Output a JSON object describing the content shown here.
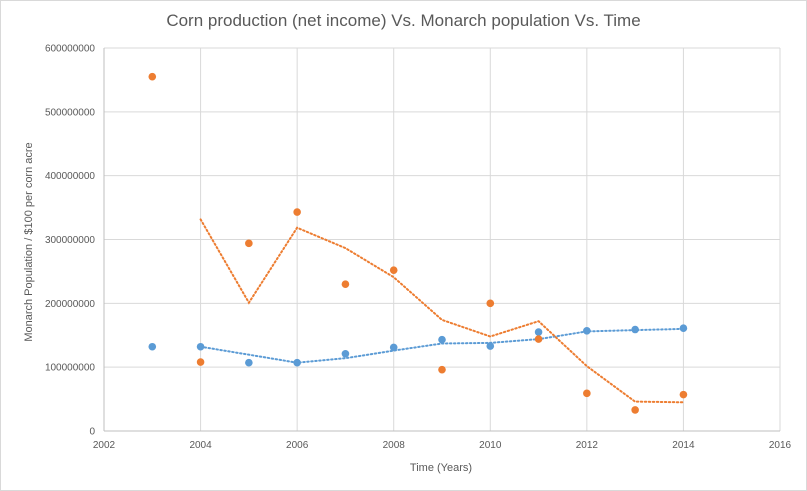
{
  "chart_data": {
    "type": "scatter",
    "title": "Corn production (net income) Vs. Monarch population Vs. Time",
    "xlabel": "Time (Years)",
    "ylabel": "Monarch Population / $100 per corn acre",
    "xlim": [
      2002,
      2016
    ],
    "ylim": [
      0,
      600000000
    ],
    "xticks": [
      "2002",
      "2004",
      "2006",
      "2008",
      "2010",
      "2012",
      "2014",
      "2016"
    ],
    "yticks": [
      "0",
      "100000000",
      "200000000",
      "300000000",
      "400000000",
      "500000000",
      "600000000"
    ],
    "grid": true,
    "legend": "none",
    "trendline": "2-period moving average (dotted)",
    "colors": {
      "blue": "#5b9bd5",
      "orange": "#ed7d31",
      "grid": "#d9d9d9",
      "axis": "#bfbfbf"
    },
    "series": [
      {
        "color": "#5b9bd5",
        "x": [
          2003,
          2004,
          2005,
          2006,
          2007,
          2008,
          2009,
          2010,
          2011,
          2012,
          2013,
          2014
        ],
        "y": [
          132000000,
          132000000,
          107000000,
          107000000,
          121000000,
          131000000,
          143000000,
          133000000,
          155000000,
          157000000,
          159000000,
          161000000
        ]
      },
      {
        "color": "#ed7d31",
        "x": [
          2003,
          2004,
          2005,
          2006,
          2007,
          2008,
          2009,
          2010,
          2011,
          2012,
          2013,
          2014
        ],
        "y": [
          555000000,
          108000000,
          294000000,
          343000000,
          230000000,
          252000000,
          96000000,
          200000000,
          144000000,
          59000000,
          33000000,
          57000000
        ]
      }
    ]
  }
}
